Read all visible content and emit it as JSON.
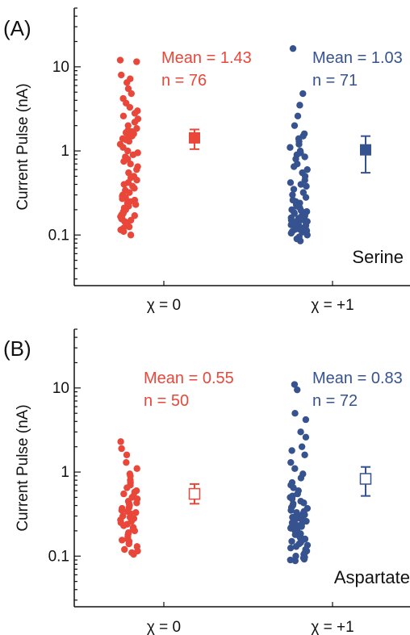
{
  "colors": {
    "red": "#e8473a",
    "blue": "#36528f",
    "axis": "#111111"
  },
  "chart_data": [
    {
      "type": "scatter",
      "panel": "(A)",
      "compound": "Serine",
      "ylabel": "Current Pulse (nA)",
      "yscale": "log",
      "ylim": [
        0.025,
        50
      ],
      "yticks": [
        "0.1",
        "1",
        "10"
      ],
      "categories": [
        "χ = 0",
        "χ = +1"
      ],
      "series": [
        {
          "category": "χ = 0",
          "color": "#e8473a",
          "marker": "filled-square",
          "annotation": [
            "Mean = 1.43",
            "n = 76"
          ],
          "mean": 1.43,
          "err_low": 1.05,
          "err_high": 1.8,
          "points": [
            12.0,
            11.5,
            8.0,
            7.2,
            6.5,
            5.5,
            4.8,
            4.2,
            3.7,
            3.3,
            3.0,
            2.8,
            2.6,
            2.4,
            2.2,
            2.0,
            1.85,
            1.75,
            1.7,
            1.65,
            1.6,
            1.55,
            1.5,
            1.45,
            1.4,
            1.35,
            1.3,
            1.2,
            1.1,
            1.0,
            0.95,
            0.9,
            0.85,
            0.8,
            0.75,
            0.7,
            0.65,
            0.6,
            0.55,
            0.5,
            0.48,
            0.45,
            0.42,
            0.4,
            0.38,
            0.36,
            0.34,
            0.32,
            0.3,
            0.29,
            0.28,
            0.27,
            0.26,
            0.25,
            0.24,
            0.23,
            0.22,
            0.21,
            0.2,
            0.19,
            0.18,
            0.175,
            0.17,
            0.165,
            0.16,
            0.155,
            0.15,
            0.145,
            0.14,
            0.135,
            0.13,
            0.125,
            0.12,
            0.115,
            0.11,
            0.1
          ]
        },
        {
          "category": "χ = +1",
          "color": "#36528f",
          "marker": "filled-square",
          "annotation": [
            "Mean = 1.03",
            "n = 71"
          ],
          "mean": 1.03,
          "err_low": 0.55,
          "err_high": 1.5,
          "points": [
            16.5,
            4.8,
            3.5,
            2.6,
            2.0,
            1.6,
            1.5,
            1.4,
            1.3,
            1.2,
            1.1,
            1.0,
            0.95,
            0.9,
            0.85,
            0.8,
            0.7,
            0.65,
            0.6,
            0.55,
            0.5,
            0.45,
            0.42,
            0.4,
            0.38,
            0.35,
            0.32,
            0.3,
            0.28,
            0.26,
            0.25,
            0.24,
            0.23,
            0.22,
            0.21,
            0.2,
            0.195,
            0.19,
            0.185,
            0.18,
            0.175,
            0.17,
            0.165,
            0.16,
            0.158,
            0.155,
            0.152,
            0.15,
            0.148,
            0.145,
            0.142,
            0.14,
            0.138,
            0.135,
            0.132,
            0.13,
            0.128,
            0.125,
            0.122,
            0.12,
            0.118,
            0.116,
            0.114,
            0.112,
            0.11,
            0.108,
            0.105,
            0.1,
            0.095,
            0.09,
            0.085
          ]
        }
      ]
    },
    {
      "type": "scatter",
      "panel": "(B)",
      "compound": "Aspartate",
      "ylabel": "Current Pulse (nA)",
      "yscale": "log",
      "ylim": [
        0.025,
        50
      ],
      "yticks": [
        "0.1",
        "1",
        "10"
      ],
      "categories": [
        "χ = 0",
        "χ = +1"
      ],
      "series": [
        {
          "category": "χ = 0",
          "color": "#e8473a",
          "marker": "open-square",
          "annotation": [
            "Mean = 0.55",
            "n = 50"
          ],
          "mean": 0.55,
          "err_low": 0.42,
          "err_high": 0.72,
          "points": [
            2.3,
            1.9,
            1.6,
            1.3,
            1.1,
            0.95,
            0.9,
            0.8,
            0.75,
            0.7,
            0.65,
            0.6,
            0.58,
            0.55,
            0.52,
            0.5,
            0.48,
            0.45,
            0.43,
            0.42,
            0.4,
            0.38,
            0.37,
            0.35,
            0.34,
            0.33,
            0.32,
            0.3,
            0.29,
            0.28,
            0.27,
            0.26,
            0.25,
            0.24,
            0.23,
            0.22,
            0.21,
            0.2,
            0.19,
            0.18,
            0.17,
            0.16,
            0.155,
            0.15,
            0.14,
            0.13,
            0.12,
            0.115,
            0.11,
            0.105
          ]
        },
        {
          "category": "χ = +1",
          "color": "#36528f",
          "marker": "open-square",
          "annotation": [
            "Mean = 0.83",
            "n = 72"
          ],
          "mean": 0.83,
          "err_low": 0.52,
          "err_high": 1.15,
          "points": [
            11.0,
            9.5,
            5.0,
            4.2,
            3.0,
            2.6,
            2.0,
            1.8,
            1.6,
            1.3,
            1.1,
            0.95,
            0.85,
            0.75,
            0.7,
            0.65,
            0.6,
            0.55,
            0.52,
            0.5,
            0.48,
            0.45,
            0.43,
            0.42,
            0.4,
            0.38,
            0.37,
            0.35,
            0.34,
            0.33,
            0.32,
            0.31,
            0.3,
            0.29,
            0.28,
            0.27,
            0.26,
            0.25,
            0.24,
            0.235,
            0.23,
            0.225,
            0.22,
            0.215,
            0.21,
            0.205,
            0.2,
            0.195,
            0.19,
            0.185,
            0.18,
            0.175,
            0.17,
            0.165,
            0.16,
            0.155,
            0.15,
            0.145,
            0.14,
            0.135,
            0.13,
            0.125,
            0.12,
            0.115,
            0.11,
            0.105,
            0.1,
            0.097,
            0.095,
            0.092,
            0.09,
            0.088
          ]
        }
      ]
    }
  ]
}
